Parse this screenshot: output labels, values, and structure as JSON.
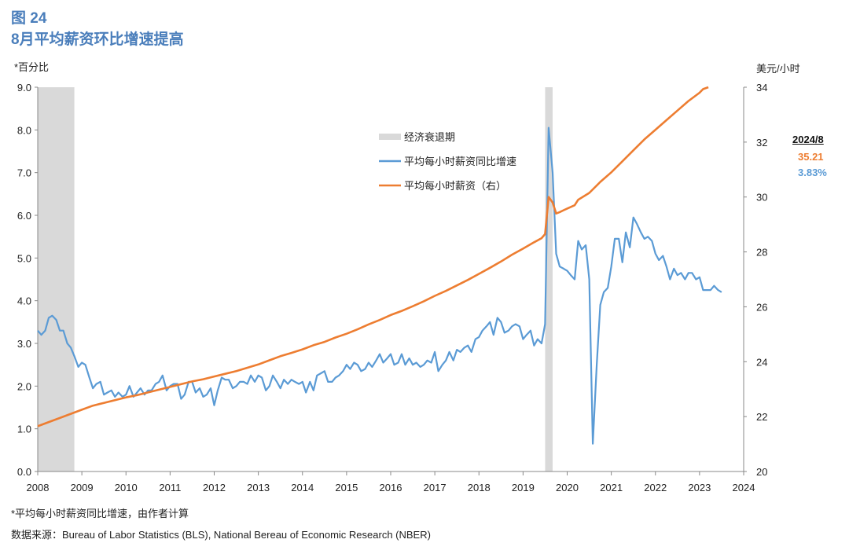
{
  "figure": {
    "number": "图 24",
    "title": "8月平均薪资环比增速提高",
    "left_axis_label": "*百分比",
    "right_axis_label": "美元/小时",
    "note": "*平均每小时薪资同比增速，由作者计算",
    "source": "数据来源：Bureau of Labor Statistics (BLS), National Bereau of Economic Research (NBER)",
    "callout": {
      "date": "2024/8",
      "wage": "35.21",
      "yoy": "3.83%"
    }
  },
  "chart_data": {
    "type": "line",
    "xlim": [
      2008,
      2024
    ],
    "x_ticks": [
      "2008",
      "2009",
      "2010",
      "2011",
      "2012",
      "2013",
      "2014",
      "2015",
      "2016",
      "2017",
      "2018",
      "2019",
      "2020",
      "2021",
      "2022",
      "2023",
      "2024"
    ],
    "y_left_lim": [
      0,
      9
    ],
    "y_left_ticks": [
      "0.0",
      "1.0",
      "2.0",
      "3.0",
      "4.0",
      "5.0",
      "6.0",
      "7.0",
      "8.0",
      "9.0"
    ],
    "y_right_lim": [
      20,
      34
    ],
    "y_right_ticks": [
      "20",
      "22",
      "24",
      "26",
      "28",
      "30",
      "32",
      "34"
    ],
    "legend": [
      "经济衰退期",
      "平均每小时薪资同比增速",
      "平均每小时薪资（右）"
    ],
    "colors": {
      "recession": "#d9d9d9",
      "yoy": "#5b9bd5",
      "wage": "#ed7d31"
    },
    "recessions": [
      [
        2008.0,
        2008.83
      ],
      [
        2019.5,
        2019.67
      ]
    ],
    "series": [
      {
        "name": "平均每小时薪资同比增速",
        "axis": "left",
        "points": [
          [
            2008.0,
            3.3
          ],
          [
            2008.08,
            3.2
          ],
          [
            2008.17,
            3.3
          ],
          [
            2008.25,
            3.6
          ],
          [
            2008.33,
            3.65
          ],
          [
            2008.42,
            3.55
          ],
          [
            2008.5,
            3.3
          ],
          [
            2008.58,
            3.3
          ],
          [
            2008.67,
            3.0
          ],
          [
            2008.75,
            2.9
          ],
          [
            2008.83,
            2.7
          ],
          [
            2008.92,
            2.45
          ],
          [
            2009.0,
            2.55
          ],
          [
            2009.08,
            2.5
          ],
          [
            2009.17,
            2.2
          ],
          [
            2009.25,
            1.95
          ],
          [
            2009.33,
            2.05
          ],
          [
            2009.42,
            2.1
          ],
          [
            2009.5,
            1.8
          ],
          [
            2009.58,
            1.85
          ],
          [
            2009.67,
            1.9
          ],
          [
            2009.75,
            1.75
          ],
          [
            2009.83,
            1.85
          ],
          [
            2009.92,
            1.75
          ],
          [
            2010.0,
            1.8
          ],
          [
            2010.08,
            2.0
          ],
          [
            2010.17,
            1.75
          ],
          [
            2010.25,
            1.85
          ],
          [
            2010.33,
            1.95
          ],
          [
            2010.42,
            1.8
          ],
          [
            2010.5,
            1.9
          ],
          [
            2010.58,
            1.9
          ],
          [
            2010.67,
            2.05
          ],
          [
            2010.75,
            2.1
          ],
          [
            2010.83,
            2.25
          ],
          [
            2010.92,
            1.9
          ],
          [
            2011.0,
            2.0
          ],
          [
            2011.08,
            2.05
          ],
          [
            2011.17,
            2.05
          ],
          [
            2011.25,
            1.7
          ],
          [
            2011.33,
            1.8
          ],
          [
            2011.42,
            2.1
          ],
          [
            2011.5,
            2.1
          ],
          [
            2011.58,
            1.85
          ],
          [
            2011.67,
            1.95
          ],
          [
            2011.75,
            1.75
          ],
          [
            2011.83,
            1.8
          ],
          [
            2011.92,
            1.95
          ],
          [
            2012.0,
            1.55
          ],
          [
            2012.08,
            1.9
          ],
          [
            2012.17,
            2.2
          ],
          [
            2012.25,
            2.15
          ],
          [
            2012.33,
            2.15
          ],
          [
            2012.42,
            1.95
          ],
          [
            2012.5,
            2.0
          ],
          [
            2012.58,
            2.1
          ],
          [
            2012.67,
            2.1
          ],
          [
            2012.75,
            2.05
          ],
          [
            2012.83,
            2.25
          ],
          [
            2012.92,
            2.1
          ],
          [
            2013.0,
            2.25
          ],
          [
            2013.08,
            2.2
          ],
          [
            2013.17,
            1.9
          ],
          [
            2013.25,
            2.0
          ],
          [
            2013.33,
            2.25
          ],
          [
            2013.42,
            2.1
          ],
          [
            2013.5,
            1.95
          ],
          [
            2013.58,
            2.15
          ],
          [
            2013.67,
            2.05
          ],
          [
            2013.75,
            2.15
          ],
          [
            2013.83,
            2.1
          ],
          [
            2013.92,
            2.05
          ],
          [
            2014.0,
            2.1
          ],
          [
            2014.08,
            1.85
          ],
          [
            2014.17,
            2.1
          ],
          [
            2014.25,
            1.9
          ],
          [
            2014.33,
            2.25
          ],
          [
            2014.42,
            2.3
          ],
          [
            2014.5,
            2.35
          ],
          [
            2014.58,
            2.1
          ],
          [
            2014.67,
            2.1
          ],
          [
            2014.75,
            2.2
          ],
          [
            2014.83,
            2.25
          ],
          [
            2014.92,
            2.35
          ],
          [
            2015.0,
            2.5
          ],
          [
            2015.08,
            2.4
          ],
          [
            2015.17,
            2.55
          ],
          [
            2015.25,
            2.5
          ],
          [
            2015.33,
            2.35
          ],
          [
            2015.42,
            2.4
          ],
          [
            2015.5,
            2.55
          ],
          [
            2015.58,
            2.45
          ],
          [
            2015.67,
            2.6
          ],
          [
            2015.75,
            2.75
          ],
          [
            2015.83,
            2.55
          ],
          [
            2015.92,
            2.65
          ],
          [
            2016.0,
            2.75
          ],
          [
            2016.08,
            2.5
          ],
          [
            2016.17,
            2.55
          ],
          [
            2016.25,
            2.75
          ],
          [
            2016.33,
            2.5
          ],
          [
            2016.42,
            2.65
          ],
          [
            2016.5,
            2.5
          ],
          [
            2016.58,
            2.55
          ],
          [
            2016.67,
            2.45
          ],
          [
            2016.75,
            2.5
          ],
          [
            2016.83,
            2.6
          ],
          [
            2016.92,
            2.55
          ],
          [
            2017.0,
            2.8
          ],
          [
            2017.08,
            2.35
          ],
          [
            2017.17,
            2.5
          ],
          [
            2017.25,
            2.6
          ],
          [
            2017.33,
            2.8
          ],
          [
            2017.42,
            2.6
          ],
          [
            2017.5,
            2.85
          ],
          [
            2017.58,
            2.8
          ],
          [
            2017.67,
            2.9
          ],
          [
            2017.75,
            2.95
          ],
          [
            2017.83,
            2.8
          ],
          [
            2017.92,
            3.1
          ],
          [
            2018.0,
            3.15
          ],
          [
            2018.08,
            3.3
          ],
          [
            2018.17,
            3.4
          ],
          [
            2018.25,
            3.5
          ],
          [
            2018.33,
            3.2
          ],
          [
            2018.42,
            3.6
          ],
          [
            2018.5,
            3.5
          ],
          [
            2018.58,
            3.25
          ],
          [
            2018.67,
            3.3
          ],
          [
            2018.75,
            3.4
          ],
          [
            2018.83,
            3.45
          ],
          [
            2018.92,
            3.4
          ],
          [
            2019.0,
            3.1
          ],
          [
            2019.08,
            3.2
          ],
          [
            2019.17,
            3.3
          ],
          [
            2019.25,
            2.95
          ],
          [
            2019.33,
            3.1
          ],
          [
            2019.42,
            3.0
          ],
          [
            2019.5,
            3.45
          ],
          [
            2019.58,
            8.05
          ],
          [
            2019.67,
            7.0
          ],
          [
            2019.75,
            5.1
          ],
          [
            2019.83,
            4.8
          ],
          [
            2019.92,
            4.75
          ],
          [
            2020.0,
            4.7
          ],
          [
            2020.08,
            4.6
          ],
          [
            2020.17,
            4.5
          ],
          [
            2020.25,
            5.4
          ],
          [
            2020.33,
            5.2
          ],
          [
            2020.42,
            5.3
          ],
          [
            2020.5,
            4.5
          ],
          [
            2020.58,
            0.65
          ],
          [
            2020.67,
            2.5
          ],
          [
            2020.75,
            3.9
          ],
          [
            2020.83,
            4.2
          ],
          [
            2020.92,
            4.3
          ],
          [
            2021.0,
            4.8
          ],
          [
            2021.08,
            5.45
          ],
          [
            2021.17,
            5.45
          ],
          [
            2021.25,
            4.9
          ],
          [
            2021.33,
            5.6
          ],
          [
            2021.42,
            5.25
          ],
          [
            2021.5,
            5.95
          ],
          [
            2021.58,
            5.8
          ],
          [
            2021.67,
            5.6
          ],
          [
            2021.75,
            5.45
          ],
          [
            2021.83,
            5.5
          ],
          [
            2021.92,
            5.4
          ],
          [
            2022.0,
            5.1
          ],
          [
            2022.08,
            4.95
          ],
          [
            2022.17,
            5.05
          ],
          [
            2022.25,
            4.8
          ],
          [
            2022.33,
            4.5
          ],
          [
            2022.42,
            4.75
          ],
          [
            2022.5,
            4.6
          ],
          [
            2022.58,
            4.65
          ],
          [
            2022.67,
            4.5
          ],
          [
            2022.75,
            4.65
          ],
          [
            2022.83,
            4.65
          ],
          [
            2022.92,
            4.5
          ],
          [
            2023.0,
            4.55
          ],
          [
            2023.08,
            4.25
          ],
          [
            2023.17,
            4.25
          ],
          [
            2023.25,
            4.25
          ],
          [
            2023.33,
            4.35
          ],
          [
            2023.42,
            4.25
          ],
          [
            2023.5,
            4.2
          ]
        ]
      },
      {
        "name": "平均每小时薪资（右）",
        "axis": "right",
        "points": [
          [
            2008.0,
            21.65
          ],
          [
            2008.25,
            21.8
          ],
          [
            2008.5,
            21.95
          ],
          [
            2008.75,
            22.1
          ],
          [
            2009.0,
            22.25
          ],
          [
            2009.25,
            22.4
          ],
          [
            2009.5,
            22.5
          ],
          [
            2009.75,
            22.6
          ],
          [
            2010.0,
            22.7
          ],
          [
            2010.25,
            22.78
          ],
          [
            2010.5,
            22.88
          ],
          [
            2010.75,
            22.98
          ],
          [
            2011.0,
            23.08
          ],
          [
            2011.25,
            23.18
          ],
          [
            2011.5,
            23.28
          ],
          [
            2011.75,
            23.36
          ],
          [
            2012.0,
            23.46
          ],
          [
            2012.25,
            23.56
          ],
          [
            2012.5,
            23.66
          ],
          [
            2012.75,
            23.78
          ],
          [
            2013.0,
            23.9
          ],
          [
            2013.25,
            24.05
          ],
          [
            2013.5,
            24.2
          ],
          [
            2013.75,
            24.32
          ],
          [
            2014.0,
            24.45
          ],
          [
            2014.25,
            24.6
          ],
          [
            2014.5,
            24.72
          ],
          [
            2014.75,
            24.88
          ],
          [
            2015.0,
            25.02
          ],
          [
            2015.25,
            25.18
          ],
          [
            2015.5,
            25.36
          ],
          [
            2015.75,
            25.52
          ],
          [
            2016.0,
            25.7
          ],
          [
            2016.25,
            25.85
          ],
          [
            2016.5,
            26.02
          ],
          [
            2016.75,
            26.2
          ],
          [
            2017.0,
            26.4
          ],
          [
            2017.25,
            26.58
          ],
          [
            2017.5,
            26.78
          ],
          [
            2017.75,
            26.98
          ],
          [
            2018.0,
            27.2
          ],
          [
            2018.25,
            27.42
          ],
          [
            2018.5,
            27.65
          ],
          [
            2018.75,
            27.9
          ],
          [
            2019.0,
            28.12
          ],
          [
            2019.25,
            28.35
          ],
          [
            2019.42,
            28.5
          ],
          [
            2019.5,
            28.65
          ],
          [
            2019.58,
            30.0
          ],
          [
            2019.67,
            29.8
          ],
          [
            2019.75,
            29.4
          ],
          [
            2019.83,
            29.45
          ],
          [
            2019.92,
            29.52
          ],
          [
            2020.0,
            29.58
          ],
          [
            2020.17,
            29.7
          ],
          [
            2020.25,
            29.9
          ],
          [
            2020.5,
            30.15
          ],
          [
            2020.75,
            30.55
          ],
          [
            2021.0,
            30.9
          ],
          [
            2021.25,
            31.3
          ],
          [
            2021.5,
            31.7
          ],
          [
            2021.75,
            32.1
          ],
          [
            2022.0,
            32.45
          ],
          [
            2022.25,
            32.8
          ],
          [
            2022.5,
            33.15
          ],
          [
            2022.75,
            33.5
          ],
          [
            2023.0,
            33.8
          ],
          [
            2023.08,
            33.93
          ],
          [
            2023.2,
            34.0
          ]
        ]
      }
    ]
  }
}
